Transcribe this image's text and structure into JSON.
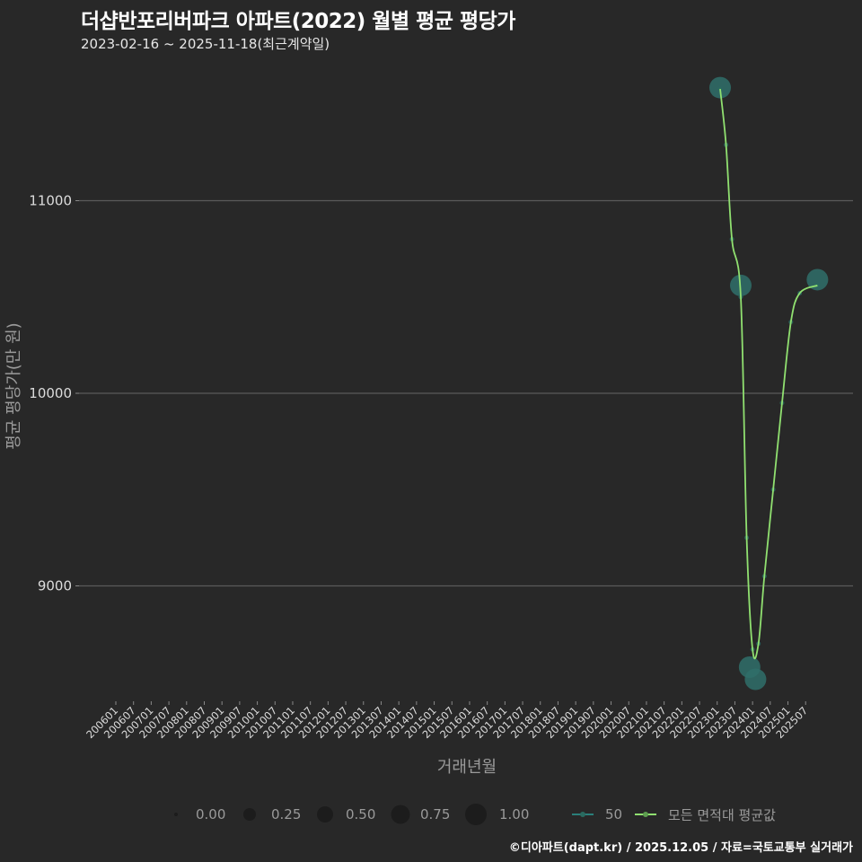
{
  "header": {
    "title": "더샵반포리버파크 아파트(2022) 월별 평균 평당가",
    "subtitle": "2023-02-16 ~ 2025-11-18(최근계약일)"
  },
  "axes": {
    "ylabel": "평균 평당가(만 원)",
    "xlabel": "거래년월"
  },
  "legend": {
    "size": [
      {
        "label": "0.00",
        "r": 2
      },
      {
        "label": "0.25",
        "r": 7
      },
      {
        "label": "0.50",
        "r": 9
      },
      {
        "label": "0.75",
        "r": 10.5
      },
      {
        "label": "1.00",
        "r": 12
      }
    ],
    "series": [
      {
        "label": "50",
        "color": "#2a7f7a"
      },
      {
        "label": "모든 면적대 평균값",
        "color": "#90e070"
      }
    ]
  },
  "footer": {
    "credit": "©디아파트(dapt.kr) / 2025.12.05 / 자료=국토교통부 실거래가"
  },
  "colors": {
    "background": "#282828",
    "grid": "#5a5a5a",
    "point": "#2f6f6a",
    "line": "#90e070"
  },
  "chart_data": {
    "type": "line",
    "title": "더샵반포리버파크 아파트(2022) 월별 평균 평당가",
    "subtitle": "2023-02-16 ~ 2025-11-18(최근계약일)",
    "xlabel": "거래년월",
    "ylabel": "평균 평당가(만 원)",
    "x_ticks": [
      "200601",
      "200607",
      "200701",
      "200707",
      "200801",
      "200807",
      "200901",
      "200907",
      "201001",
      "201007",
      "201101",
      "201107",
      "201201",
      "201207",
      "201301",
      "201307",
      "201401",
      "201407",
      "201501",
      "201507",
      "201601",
      "201607",
      "201701",
      "201707",
      "201801",
      "201807",
      "201901",
      "201907",
      "202001",
      "202007",
      "202101",
      "202107",
      "202201",
      "202207",
      "202301",
      "202307",
      "202401",
      "202407",
      "202501",
      "202507"
    ],
    "y_ticks": [
      9000,
      10000,
      11000
    ],
    "ylim": [
      8420,
      11750
    ],
    "grid": true,
    "legend_position": "bottom",
    "series": [
      {
        "name": "50",
        "kind": "points",
        "points": [
          {
            "x": "202302",
            "y": 11587,
            "size": 1.0
          },
          {
            "x": "202309",
            "y": 10560,
            "size": 1.0
          },
          {
            "x": "202312",
            "y": 8578,
            "size": 1.0
          },
          {
            "x": "202402",
            "y": 8515,
            "size": 1.0
          },
          {
            "x": "202511",
            "y": 10590,
            "size": 1.0
          }
        ]
      },
      {
        "name": "모든 면적대 평균값",
        "kind": "smooth-line",
        "points": [
          {
            "x": "202302",
            "y": 11580
          },
          {
            "x": "202304",
            "y": 11290
          },
          {
            "x": "202306",
            "y": 10800
          },
          {
            "x": "202309",
            "y": 10500
          },
          {
            "x": "202311",
            "y": 9250
          },
          {
            "x": "202401",
            "y": 8670
          },
          {
            "x": "202403",
            "y": 8700
          },
          {
            "x": "202405",
            "y": 9050
          },
          {
            "x": "202408",
            "y": 9500
          },
          {
            "x": "202411",
            "y": 9950
          },
          {
            "x": "202502",
            "y": 10370
          },
          {
            "x": "202505",
            "y": 10520
          },
          {
            "x": "202511",
            "y": 10560
          }
        ]
      }
    ]
  }
}
